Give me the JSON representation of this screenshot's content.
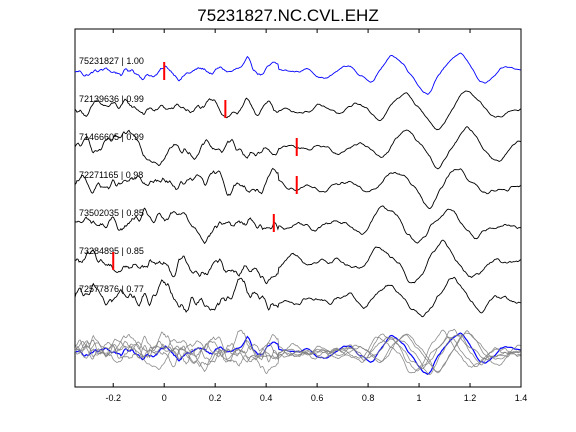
{
  "chart_data": {
    "type": "line",
    "title": "75231827.NC.CVL.EHZ",
    "xlim": [
      -0.35,
      1.4
    ],
    "x_ticks": [
      -0.2,
      0,
      0.2,
      0.4,
      0.6,
      0.8,
      1,
      1.2,
      1.4
    ],
    "x_tick_labels": [
      "-0.2",
      "0",
      "0.2",
      "0.4",
      "0.6",
      "0.8",
      "1",
      "1.2",
      "1.4"
    ],
    "grid": false,
    "colors": {
      "reference": "#0000ff",
      "other": "#000000",
      "stack_other": "#808080",
      "pick": "#ff0000"
    },
    "traces": [
      {
        "id": "75231827",
        "cc": "1.00",
        "label": "75231827 | 1.00",
        "pick_time": 0.0,
        "color": "#0000ff"
      },
      {
        "id": "72139636",
        "cc": "0.99",
        "label": "72139636 | 0.99",
        "pick_time": 0.24,
        "color": "#000000"
      },
      {
        "id": "71466605",
        "cc": "0.99",
        "label": "71466605 | 0.99",
        "pick_time": 0.52,
        "color": "#000000"
      },
      {
        "id": "72271165",
        "cc": "0.98",
        "label": "72271165 | 0.98",
        "pick_time": 0.52,
        "color": "#000000"
      },
      {
        "id": "73502035",
        "cc": "0.85",
        "label": "73502035 | 0.85",
        "pick_time": 0.43,
        "color": "#000000"
      },
      {
        "id": "73284895",
        "cc": "0.85",
        "label": "73284895 | 0.85",
        "pick_time": -0.2,
        "color": "#000000"
      },
      {
        "id": "72577876",
        "cc": "0.77",
        "label": "72577876 | 0.77",
        "pick_time": null,
        "color": "#000000"
      }
    ],
    "overlay": "all traces superimposed at bottom"
  }
}
